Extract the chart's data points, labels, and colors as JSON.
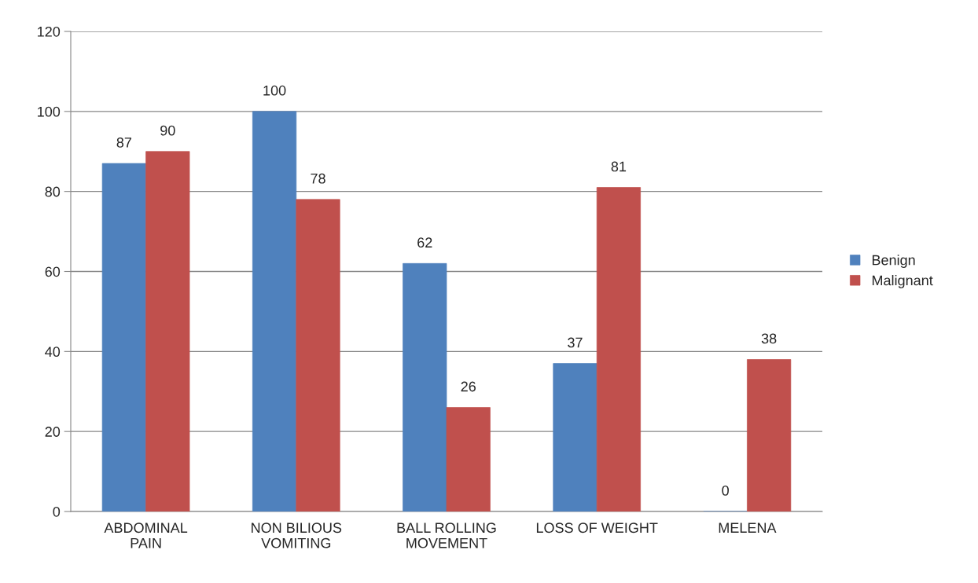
{
  "chart_data": {
    "type": "bar",
    "categories": [
      "ABDOMINAL\nPAIN",
      "NON BILIOUS\nVOMITING",
      "BALL ROLLING\nMOVEMENT",
      "LOSS OF WEIGHT",
      "MELENA"
    ],
    "series": [
      {
        "name": "Benign",
        "color": "#4f81bd",
        "values": [
          87,
          100,
          62,
          37,
          0
        ]
      },
      {
        "name": "Malignant",
        "color": "#c0504d",
        "values": [
          90,
          78,
          26,
          81,
          38
        ]
      }
    ],
    "ylim": [
      0,
      120
    ],
    "yticks": [
      0,
      20,
      40,
      60,
      80,
      100,
      120
    ],
    "grid": "y",
    "legend": "right",
    "data_labels": true
  }
}
